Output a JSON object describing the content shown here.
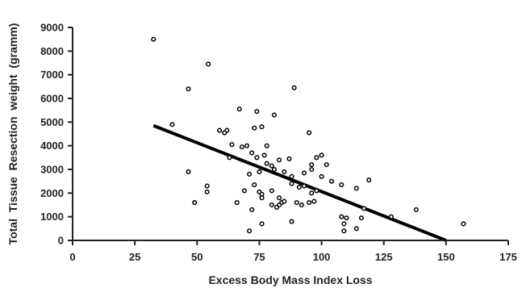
{
  "chart_data": {
    "type": "scatter",
    "xlabel": "Excess Body Mass Index Loss",
    "ylabel": "Total  Tissue  Resection  weight  (gramm)",
    "xlim": [
      0,
      175
    ],
    "ylim": [
      0,
      9000
    ],
    "xticks": [
      "0",
      "25",
      "50",
      "75",
      "100",
      "125",
      "150",
      "175"
    ],
    "yticks": [
      "0",
      "1000",
      "2000",
      "3000",
      "4000",
      "5000",
      "6000",
      "7000",
      "8000",
      "9000"
    ],
    "grid": false,
    "series": [
      {
        "points": [
          [
            32.5,
            8500
          ],
          [
            54.5,
            7450
          ],
          [
            46.5,
            6400
          ],
          [
            89,
            6450
          ],
          [
            67,
            5550
          ],
          [
            74,
            5450
          ],
          [
            81,
            5300
          ],
          [
            95,
            4550
          ],
          [
            40,
            4900
          ],
          [
            59,
            4650
          ],
          [
            62,
            4650
          ],
          [
            73,
            4750
          ],
          [
            76,
            4800
          ],
          [
            61,
            4550
          ],
          [
            64,
            4050
          ],
          [
            68,
            3950
          ],
          [
            70,
            4000
          ],
          [
            72,
            3700
          ],
          [
            74,
            3500
          ],
          [
            77,
            3600
          ],
          [
            78,
            4000
          ],
          [
            83,
            3400
          ],
          [
            87,
            3450
          ],
          [
            63,
            3500
          ],
          [
            100,
            3600
          ],
          [
            98,
            3500
          ],
          [
            96,
            3200
          ],
          [
            46.5,
            2900
          ],
          [
            71,
            2800
          ],
          [
            75,
            2900
          ],
          [
            78,
            3250
          ],
          [
            80,
            3150
          ],
          [
            81,
            3000
          ],
          [
            85,
            2900
          ],
          [
            88,
            2700
          ],
          [
            93,
            2850
          ],
          [
            96,
            3000
          ],
          [
            100,
            2700
          ],
          [
            102,
            3200
          ],
          [
            108,
            2350
          ],
          [
            114,
            2200
          ],
          [
            119,
            2550
          ],
          [
            54,
            2300
          ],
          [
            54,
            2050
          ],
          [
            69,
            2100
          ],
          [
            73,
            2350
          ],
          [
            75,
            2050
          ],
          [
            76,
            1950
          ],
          [
            80,
            2100
          ],
          [
            83,
            1800
          ],
          [
            84,
            1600
          ],
          [
            88,
            2400
          ],
          [
            91,
            2250
          ],
          [
            93,
            2300
          ],
          [
            96,
            2000
          ],
          [
            98,
            2100
          ],
          [
            104,
            2500
          ],
          [
            49,
            1600
          ],
          [
            66,
            1600
          ],
          [
            76,
            1800
          ],
          [
            80,
            1500
          ],
          [
            82,
            1400
          ],
          [
            83,
            1500
          ],
          [
            85,
            1650
          ],
          [
            90,
            1600
          ],
          [
            92,
            1500
          ],
          [
            95,
            1600
          ],
          [
            97,
            1650
          ],
          [
            117,
            1350
          ],
          [
            72,
            1300
          ],
          [
            76,
            700
          ],
          [
            88,
            800
          ],
          [
            108,
            1000
          ],
          [
            109,
            700
          ],
          [
            110,
            950
          ],
          [
            116,
            950
          ],
          [
            114,
            500
          ],
          [
            71,
            400
          ],
          [
            109,
            400
          ],
          [
            128,
            1000
          ],
          [
            138,
            1300
          ],
          [
            157,
            700
          ]
        ]
      }
    ],
    "fit_line": {
      "x": [
        32.5,
        150
      ],
      "y": [
        4850,
        0
      ]
    }
  }
}
